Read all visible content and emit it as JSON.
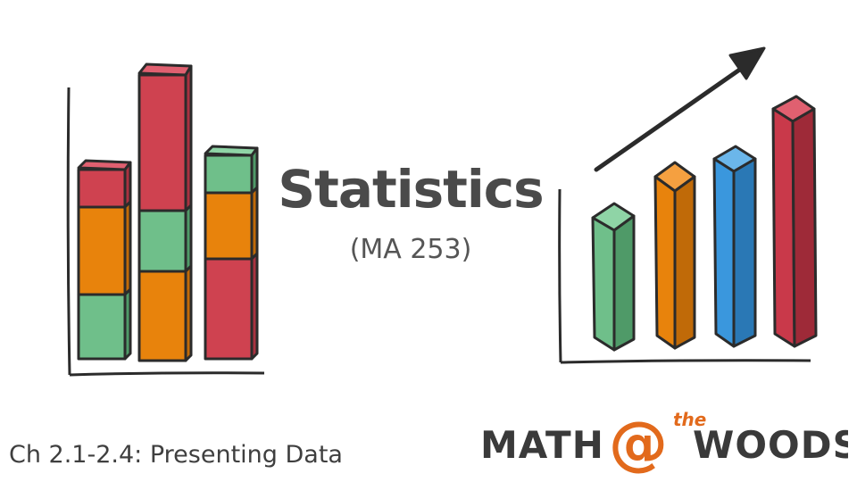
{
  "slide": {
    "title": "Statistics",
    "course_code": "(MA 253)",
    "chapter": "Ch 2.1-2.4: Presenting Data"
  },
  "logo": {
    "word_left": "MATH",
    "at_symbol": "@",
    "superscript": "the",
    "word_right": "WOODS"
  },
  "colors": {
    "red": "#cf4250",
    "orange": "#e8830c",
    "green": "#6fbf8a",
    "blue": "#3a97dd",
    "crimson": "#c9394a",
    "ink": "#2b2b2b",
    "logo_dark": "#3a3a3a",
    "logo_accent": "#e26a1c"
  }
}
